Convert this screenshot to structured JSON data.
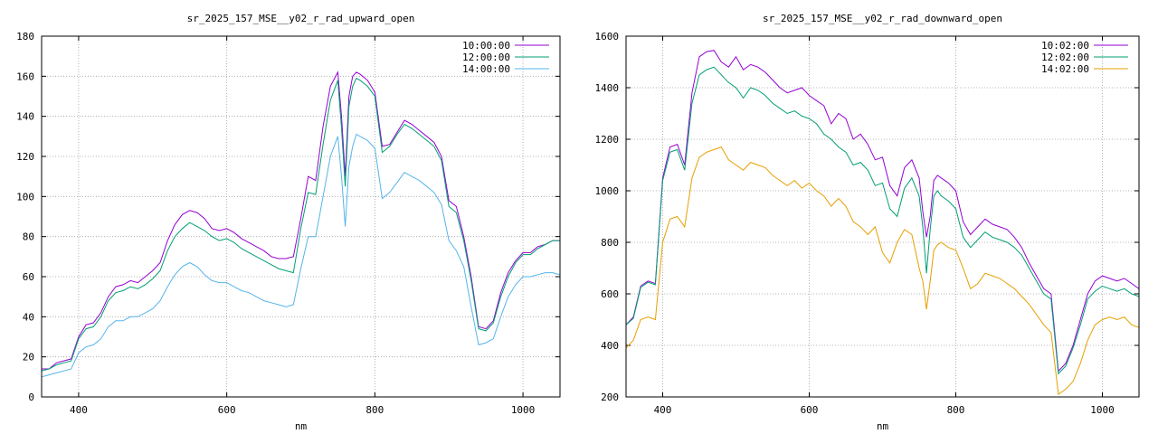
{
  "chart_data": [
    {
      "type": "line",
      "title": "sr_2025_157_MSE__y02_r_rad_upward_open",
      "xlabel": "nm",
      "ylabel": "",
      "xlim": [
        350,
        1050
      ],
      "ylim": [
        0,
        180
      ],
      "xticks": [
        400,
        600,
        800,
        1000
      ],
      "yticks": [
        0,
        20,
        40,
        60,
        80,
        100,
        120,
        140,
        160,
        180
      ],
      "grid": true,
      "legend_position": "top-right",
      "series": [
        {
          "name": "10:00:00",
          "color": "#9400d3",
          "x": [
            350,
            360,
            370,
            380,
            390,
            400,
            410,
            420,
            430,
            440,
            450,
            460,
            470,
            480,
            490,
            500,
            510,
            520,
            530,
            540,
            550,
            560,
            570,
            580,
            590,
            600,
            610,
            620,
            630,
            640,
            650,
            660,
            670,
            680,
            690,
            700,
            710,
            720,
            730,
            740,
            750,
            755,
            760,
            765,
            770,
            775,
            780,
            790,
            800,
            810,
            820,
            830,
            840,
            850,
            860,
            870,
            880,
            890,
            900,
            910,
            920,
            930,
            940,
            950,
            960,
            970,
            980,
            990,
            1000,
            1010,
            1020,
            1030,
            1040,
            1050
          ],
          "y": [
            14,
            14,
            17,
            18,
            19,
            30,
            36,
            37,
            42,
            50,
            55,
            56,
            58,
            57,
            60,
            63,
            67,
            78,
            86,
            91,
            93,
            92,
            89,
            84,
            83,
            84,
            82,
            79,
            77,
            75,
            73,
            70,
            69,
            69,
            70,
            89,
            110,
            108,
            135,
            155,
            162,
            140,
            110,
            150,
            160,
            162,
            161,
            158,
            152,
            125,
            126,
            132,
            138,
            136,
            133,
            130,
            127,
            120,
            98,
            95,
            80,
            60,
            35,
            34,
            38,
            52,
            62,
            68,
            72,
            72,
            75,
            76,
            78,
            78
          ]
        },
        {
          "name": "12:00:00",
          "color": "#009e73",
          "x": [
            350,
            360,
            370,
            380,
            390,
            400,
            410,
            420,
            430,
            440,
            450,
            460,
            470,
            480,
            490,
            500,
            510,
            520,
            530,
            540,
            550,
            560,
            570,
            580,
            590,
            600,
            610,
            620,
            630,
            640,
            650,
            660,
            670,
            680,
            690,
            700,
            710,
            720,
            730,
            740,
            750,
            755,
            760,
            765,
            770,
            775,
            780,
            790,
            800,
            810,
            820,
            830,
            840,
            850,
            860,
            870,
            880,
            890,
            900,
            910,
            920,
            930,
            940,
            950,
            960,
            970,
            980,
            990,
            1000,
            1010,
            1020,
            1030,
            1040,
            1050
          ],
          "y": [
            13,
            14,
            16,
            17,
            18,
            29,
            34,
            35,
            40,
            48,
            52,
            53,
            55,
            54,
            56,
            59,
            63,
            73,
            80,
            84,
            87,
            85,
            83,
            80,
            78,
            79,
            77,
            74,
            72,
            70,
            68,
            66,
            64,
            63,
            62,
            84,
            102,
            101,
            126,
            148,
            158,
            134,
            105,
            145,
            155,
            159,
            158,
            155,
            150,
            122,
            125,
            131,
            136,
            134,
            131,
            128,
            125,
            118,
            95,
            92,
            78,
            58,
            34,
            33,
            37,
            50,
            60,
            67,
            71,
            71,
            74,
            76,
            78,
            78
          ]
        },
        {
          "name": "14:00:00",
          "color": "#56b4e9",
          "x": [
            350,
            360,
            370,
            380,
            390,
            400,
            410,
            420,
            430,
            440,
            450,
            460,
            470,
            480,
            490,
            500,
            510,
            520,
            530,
            540,
            550,
            560,
            570,
            580,
            590,
            600,
            610,
            620,
            630,
            640,
            650,
            660,
            670,
            680,
            690,
            700,
            710,
            720,
            730,
            740,
            750,
            755,
            760,
            765,
            770,
            775,
            780,
            790,
            800,
            810,
            820,
            830,
            840,
            850,
            860,
            870,
            880,
            890,
            900,
            910,
            920,
            930,
            940,
            950,
            960,
            970,
            980,
            990,
            1000,
            1010,
            1020,
            1030,
            1040,
            1050
          ],
          "y": [
            10,
            11,
            12,
            13,
            14,
            22,
            25,
            26,
            29,
            35,
            38,
            38,
            40,
            40,
            42,
            44,
            48,
            55,
            61,
            65,
            67,
            65,
            61,
            58,
            57,
            57,
            55,
            53,
            52,
            50,
            48,
            47,
            46,
            45,
            46,
            64,
            80,
            80,
            100,
            120,
            130,
            110,
            85,
            115,
            125,
            131,
            130,
            128,
            124,
            99,
            102,
            107,
            112,
            110,
            108,
            105,
            102,
            96,
            78,
            73,
            65,
            45,
            26,
            27,
            29,
            40,
            50,
            56,
            60,
            60,
            61,
            62,
            62,
            61
          ]
        }
      ]
    },
    {
      "type": "line",
      "title": "sr_2025_157_MSE__y02_r_rad_downward_open",
      "xlabel": "nm",
      "ylabel": "",
      "xlim": [
        350,
        1050
      ],
      "ylim": [
        200,
        1600
      ],
      "xticks": [
        400,
        600,
        800,
        1000
      ],
      "yticks": [
        200,
        400,
        600,
        800,
        1000,
        1200,
        1400,
        1600
      ],
      "grid": true,
      "legend_position": "top-right",
      "series": [
        {
          "name": "10:02:00",
          "color": "#9400d3",
          "x": [
            350,
            360,
            370,
            380,
            390,
            400,
            410,
            420,
            430,
            440,
            450,
            460,
            470,
            480,
            490,
            500,
            510,
            520,
            530,
            540,
            550,
            560,
            570,
            580,
            590,
            600,
            610,
            620,
            630,
            640,
            650,
            660,
            670,
            680,
            690,
            700,
            710,
            720,
            730,
            740,
            750,
            755,
            760,
            765,
            770,
            775,
            780,
            790,
            800,
            810,
            820,
            830,
            840,
            850,
            860,
            870,
            880,
            890,
            900,
            910,
            920,
            930,
            940,
            950,
            960,
            970,
            980,
            990,
            1000,
            1010,
            1020,
            1030,
            1040,
            1050
          ],
          "y": [
            480,
            510,
            630,
            650,
            640,
            1050,
            1170,
            1180,
            1100,
            1380,
            1520,
            1540,
            1545,
            1500,
            1480,
            1520,
            1470,
            1490,
            1480,
            1460,
            1430,
            1400,
            1380,
            1390,
            1400,
            1370,
            1350,
            1330,
            1260,
            1300,
            1280,
            1200,
            1220,
            1180,
            1120,
            1130,
            1020,
            980,
            1090,
            1120,
            1050,
            920,
            820,
            900,
            1040,
            1060,
            1050,
            1030,
            1000,
            880,
            830,
            860,
            890,
            870,
            860,
            850,
            820,
            780,
            720,
            670,
            620,
            600,
            300,
            330,
            400,
            500,
            600,
            650,
            670,
            660,
            650,
            660,
            640,
            620
          ]
        },
        {
          "name": "12:02:00",
          "color": "#009e73",
          "x": [
            350,
            360,
            370,
            380,
            390,
            400,
            410,
            420,
            430,
            440,
            450,
            460,
            470,
            480,
            490,
            500,
            510,
            520,
            530,
            540,
            550,
            560,
            570,
            580,
            590,
            600,
            610,
            620,
            630,
            640,
            650,
            660,
            670,
            680,
            690,
            700,
            710,
            720,
            730,
            740,
            750,
            755,
            760,
            765,
            770,
            775,
            780,
            790,
            800,
            810,
            820,
            830,
            840,
            850,
            860,
            870,
            880,
            890,
            900,
            910,
            920,
            930,
            940,
            950,
            960,
            970,
            980,
            990,
            1000,
            1010,
            1020,
            1030,
            1040,
            1050
          ],
          "y": [
            480,
            505,
            625,
            645,
            635,
            1040,
            1150,
            1160,
            1080,
            1340,
            1450,
            1470,
            1480,
            1450,
            1420,
            1400,
            1360,
            1400,
            1390,
            1370,
            1340,
            1320,
            1300,
            1310,
            1290,
            1280,
            1260,
            1220,
            1200,
            1170,
            1150,
            1100,
            1110,
            1080,
            1020,
            1030,
            930,
            900,
            1010,
            1050,
            980,
            860,
            680,
            850,
            980,
            1000,
            980,
            960,
            930,
            820,
            780,
            810,
            840,
            820,
            810,
            800,
            780,
            750,
            700,
            650,
            600,
            580,
            290,
            320,
            390,
            480,
            580,
            610,
            630,
            620,
            610,
            620,
            600,
            590
          ]
        },
        {
          "name": "14:02:00",
          "color": "#e69f00",
          "x": [
            350,
            360,
            370,
            380,
            390,
            400,
            410,
            420,
            430,
            440,
            450,
            460,
            470,
            480,
            490,
            500,
            510,
            520,
            530,
            540,
            550,
            560,
            570,
            580,
            590,
            600,
            610,
            620,
            630,
            640,
            650,
            660,
            670,
            680,
            690,
            700,
            710,
            720,
            730,
            740,
            750,
            755,
            760,
            765,
            770,
            775,
            780,
            790,
            800,
            810,
            820,
            830,
            840,
            850,
            860,
            870,
            880,
            890,
            900,
            910,
            920,
            930,
            940,
            950,
            960,
            970,
            980,
            990,
            1000,
            1010,
            1020,
            1030,
            1040,
            1050
          ],
          "y": [
            390,
            420,
            500,
            510,
            500,
            800,
            890,
            900,
            860,
            1050,
            1130,
            1150,
            1160,
            1170,
            1120,
            1100,
            1080,
            1110,
            1100,
            1090,
            1060,
            1040,
            1020,
            1040,
            1010,
            1030,
            1000,
            980,
            940,
            970,
            940,
            880,
            860,
            830,
            860,
            760,
            720,
            800,
            850,
            830,
            700,
            650,
            540,
            650,
            770,
            790,
            800,
            780,
            770,
            700,
            620,
            640,
            680,
            670,
            660,
            640,
            620,
            590,
            560,
            520,
            480,
            450,
            210,
            230,
            260,
            330,
            420,
            480,
            500,
            510,
            500,
            510,
            480,
            470
          ]
        }
      ]
    }
  ]
}
